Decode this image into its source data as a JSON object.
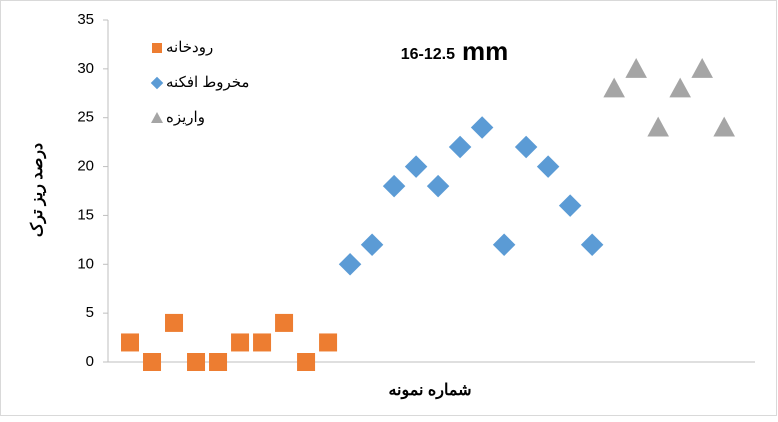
{
  "chart_data": {
    "type": "scatter",
    "title": "16-12.5",
    "title_unit": "mm",
    "x_label": "شماره نمونه",
    "y_label": "درصد ریز ترک",
    "xlim": [
      0,
      29.4
    ],
    "ylim": [
      0,
      35
    ],
    "yticks": [
      0,
      5,
      10,
      15,
      20,
      25,
      30,
      35
    ],
    "legend": "top-left",
    "series": [
      {
        "name": "رودخانه",
        "color": "#ed7d31",
        "marker": "square",
        "x": [
          1,
          2,
          3,
          4,
          5,
          6,
          7,
          8,
          9,
          10
        ],
        "values": [
          2,
          0,
          4,
          0,
          0,
          2,
          2,
          4,
          0,
          2
        ]
      },
      {
        "name": "مخروط افکنه",
        "color": "#5b9bd5",
        "marker": "diamond",
        "x": [
          11,
          12,
          13,
          14,
          15,
          16,
          17,
          18,
          19,
          20,
          21,
          22
        ],
        "values": [
          10,
          12,
          18,
          20,
          18,
          22,
          24,
          12,
          22,
          20,
          16,
          12
        ]
      },
      {
        "name": "واریزه",
        "color": "#a5a5a5",
        "marker": "triangle",
        "x": [
          23,
          24,
          25,
          26,
          27,
          28
        ],
        "values": [
          28,
          30,
          24,
          28,
          30,
          24
        ]
      }
    ]
  }
}
